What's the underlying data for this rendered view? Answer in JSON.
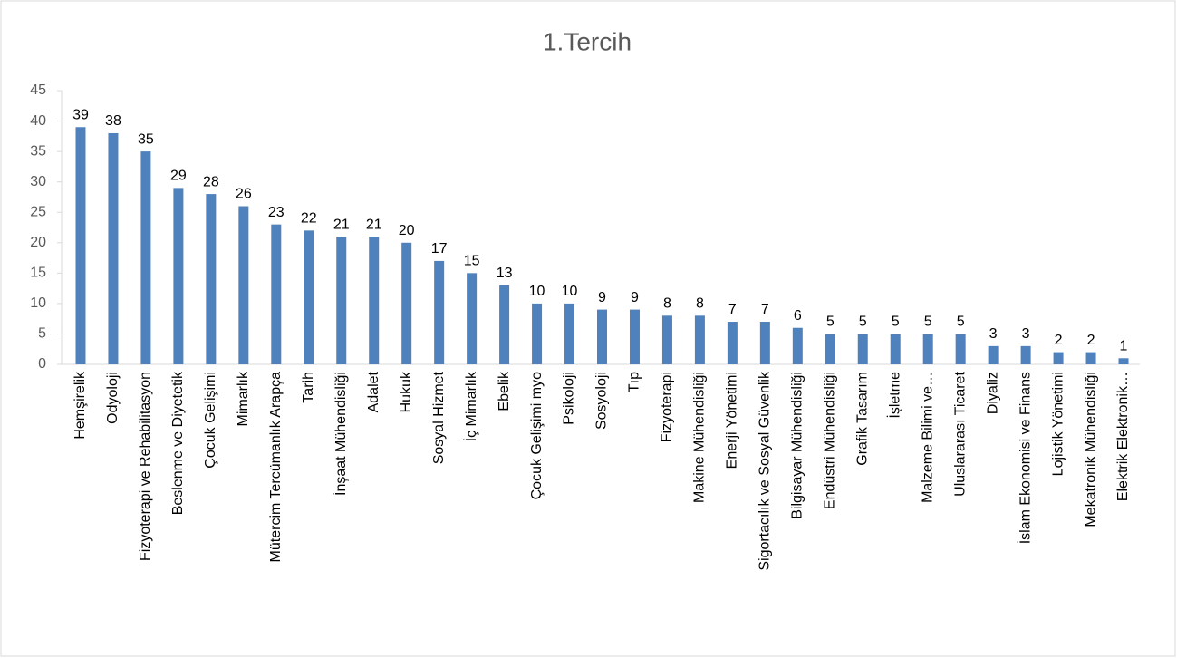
{
  "chart_data": {
    "type": "bar",
    "title": "1.Tercih",
    "categories": [
      "Hemşirelik",
      "Odyoloji",
      "Fizyoterapi ve Rehabilitasyon",
      "Beslenme ve Diyetetik",
      "Çocuk Gelişimi",
      "Mimarlık",
      "Mütercim Tercümanlık Arapça",
      "Tarih",
      "İnşaat Mühendisliği",
      "Adalet",
      "Hukuk",
      "Sosyal Hizmet",
      "İç Mimarlık",
      "Ebelik",
      "Çocuk Gelişimi myo",
      "Psikoloji",
      "Sosyoloji",
      "Tıp",
      "Fizyoterapi",
      "Makine Mühendisliği",
      "Enerji Yönetimi",
      "Sigortacılık ve Sosyal Güvenlik",
      "Bilgisayar Mühendisliği",
      "Endüstri Mühendisliği",
      "Grafik Tasarım",
      "İşletme",
      "Malzeme Bilimi ve…",
      "Uluslararası Ticaret",
      "Diyaliz",
      "İslam Ekonomisi ve Finans",
      "Lojistik Yönetimi",
      "Mekatronik Mühendisliği",
      "Elektrik Elektronik…"
    ],
    "values": [
      39,
      38,
      35,
      29,
      28,
      26,
      23,
      22,
      21,
      21,
      20,
      17,
      15,
      13,
      10,
      10,
      9,
      9,
      8,
      8,
      7,
      7,
      6,
      5,
      5,
      5,
      5,
      5,
      3,
      3,
      2,
      2,
      1
    ],
    "color": "#4f81bd",
    "ylim": [
      0,
      45
    ],
    "yticks": [
      0,
      5,
      10,
      15,
      20,
      25,
      30,
      35,
      40,
      45
    ],
    "grid": false
  }
}
